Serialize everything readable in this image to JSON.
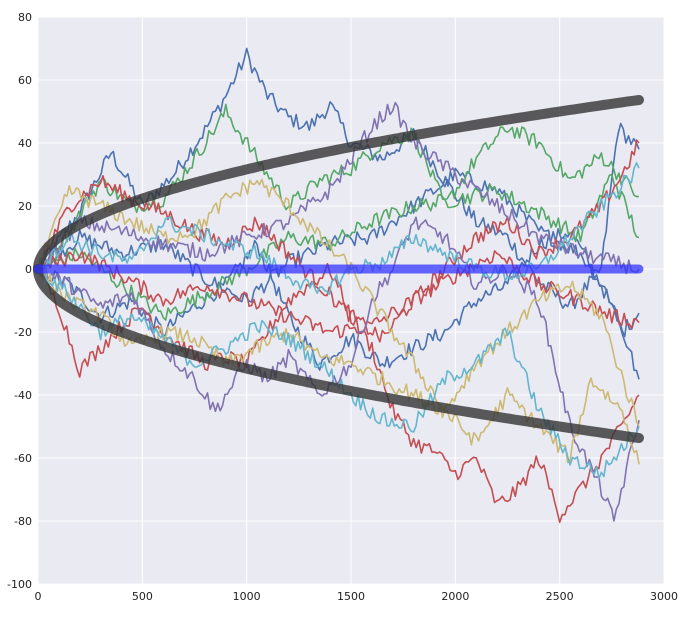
{
  "chart_data": {
    "type": "line",
    "title": "",
    "xlabel": "",
    "ylabel": "",
    "xlim": [
      0,
      3000
    ],
    "ylim": [
      -100,
      80
    ],
    "x_ticks": [
      0,
      500,
      1000,
      1500,
      2000,
      2500,
      3000
    ],
    "y_ticks": [
      -100,
      -80,
      -60,
      -40,
      -20,
      0,
      20,
      40,
      60,
      80
    ],
    "grid": true,
    "style": "seaborn-darkgrid",
    "n_steps": 2880,
    "colors": {
      "background": "#EAEAF2",
      "grid": "#FFFFFF",
      "envelope": "#333333",
      "mean_line": "#3333FF"
    },
    "reference_lines": [
      {
        "role": "upper-envelope",
        "formula": "sqrt(x)",
        "x": [
          0,
          2880
        ],
        "y_end": 53.7,
        "color": "#333333"
      },
      {
        "role": "lower-envelope",
        "formula": "-sqrt(x)",
        "x": [
          0,
          2880
        ],
        "y_end": -53.7,
        "color": "#333333"
      },
      {
        "role": "zero-mean",
        "x": [
          0,
          2880
        ],
        "y": [
          0,
          0
        ],
        "color": "#3333FF"
      }
    ],
    "series": [
      {
        "color": "#4C72B0",
        "x": [
          0,
          200,
          350,
          500,
          650,
          800,
          900,
          1000,
          1100,
          1200,
          1300,
          1400,
          1500,
          1650,
          1800,
          1950,
          2100,
          2250,
          2400,
          2550,
          2700,
          2780,
          2880
        ],
        "y": [
          0,
          18,
          37,
          20,
          30,
          44,
          55,
          68,
          55,
          48,
          45,
          52,
          40,
          35,
          43,
          28,
          15,
          10,
          -4,
          -12,
          0,
          45,
          38
        ]
      },
      {
        "color": "#4C72B0",
        "x": [
          0,
          150,
          300,
          450,
          600,
          750,
          900,
          1050,
          1200,
          1350,
          1500,
          1650,
          1800,
          1950,
          2100,
          2250,
          2400,
          2550,
          2700,
          2800,
          2880
        ],
        "y": [
          0,
          -5,
          -15,
          -10,
          -20,
          -12,
          -5,
          8,
          -15,
          -30,
          -22,
          -30,
          -25,
          -20,
          -10,
          -5,
          8,
          12,
          -5,
          -20,
          -14
        ]
      },
      {
        "color": "#4C72B0",
        "x": [
          0,
          200,
          400,
          600,
          800,
          1000,
          1200,
          1400,
          1600,
          1800,
          2000,
          2200,
          2400,
          2600,
          2750,
          2880
        ],
        "y": [
          0,
          10,
          5,
          8,
          -3,
          -10,
          2,
          8,
          10,
          20,
          30,
          25,
          12,
          5,
          -10,
          -35
        ]
      },
      {
        "color": "#55A868",
        "x": [
          0,
          150,
          300,
          450,
          600,
          750,
          900,
          1050,
          1200,
          1350,
          1500,
          1650,
          1800,
          1950,
          2100,
          2250,
          2400,
          2550,
          2700,
          2880
        ],
        "y": [
          0,
          12,
          28,
          20,
          22,
          35,
          50,
          35,
          20,
          28,
          32,
          40,
          43,
          20,
          35,
          45,
          40,
          28,
          36,
          23
        ]
      },
      {
        "color": "#55A868",
        "x": [
          0,
          200,
          400,
          600,
          800,
          1000,
          1200,
          1400,
          1600,
          1800,
          2000,
          2200,
          2400,
          2600,
          2750,
          2880
        ],
        "y": [
          0,
          5,
          -5,
          -15,
          -8,
          0,
          10,
          8,
          15,
          20,
          22,
          25,
          18,
          10,
          30,
          10
        ]
      },
      {
        "color": "#C44E52",
        "x": [
          0,
          100,
          200,
          300,
          400,
          500,
          600,
          700,
          800,
          900,
          1000,
          1100,
          1200,
          1300,
          1400,
          1500,
          1600,
          1700,
          1800,
          1900,
          2000,
          2100,
          2200,
          2300,
          2400,
          2500,
          2600,
          2700,
          2800,
          2880
        ],
        "y": [
          0,
          -12,
          -32,
          -25,
          -18,
          -12,
          -20,
          -25,
          -30,
          -28,
          -30,
          -20,
          -10,
          -5,
          0,
          -15,
          -25,
          -45,
          -55,
          -58,
          -65,
          -60,
          -75,
          -70,
          -60,
          -78,
          -70,
          -60,
          -50,
          -40
        ]
      },
      {
        "color": "#C44E52",
        "x": [
          0,
          150,
          300,
          450,
          600,
          750,
          900,
          1050,
          1200,
          1350,
          1500,
          1650,
          1800,
          1950,
          2100,
          2250,
          2400,
          2550,
          2700,
          2800,
          2880
        ],
        "y": [
          0,
          20,
          28,
          22,
          18,
          12,
          8,
          15,
          5,
          -5,
          -15,
          -22,
          -10,
          0,
          10,
          15,
          5,
          10,
          20,
          30,
          40
        ]
      },
      {
        "color": "#C44E52",
        "x": [
          0,
          200,
          400,
          600,
          800,
          1000,
          1200,
          1400,
          1600,
          1800,
          2000,
          2200,
          2400,
          2600,
          2750,
          2880
        ],
        "y": [
          0,
          5,
          -2,
          -10,
          -5,
          -10,
          -15,
          -20,
          -18,
          -10,
          -2,
          5,
          -5,
          -10,
          -15,
          -17
        ]
      },
      {
        "color": "#8172B2",
        "x": [
          0,
          150,
          300,
          450,
          600,
          750,
          850,
          1000,
          1100,
          1200,
          1350,
          1500,
          1600,
          1700,
          1800,
          1950,
          2100,
          2250,
          2400,
          2550,
          2700,
          2760,
          2880
        ],
        "y": [
          0,
          -5,
          -12,
          -8,
          -25,
          -35,
          -45,
          -30,
          -35,
          -28,
          -40,
          -30,
          -10,
          0,
          15,
          10,
          -5,
          0,
          -10,
          -50,
          -70,
          -80,
          -48
        ]
      },
      {
        "color": "#8172B2",
        "x": [
          0,
          200,
          400,
          600,
          800,
          1000,
          1200,
          1400,
          1600,
          1700,
          1800,
          2000,
          2200,
          2400,
          2600,
          2880
        ],
        "y": [
          0,
          15,
          12,
          8,
          5,
          10,
          15,
          25,
          45,
          52,
          40,
          30,
          20,
          10,
          5,
          0
        ]
      },
      {
        "color": "#CCB974",
        "x": [
          0,
          150,
          300,
          450,
          600,
          750,
          900,
          1050,
          1200,
          1350,
          1500,
          1650,
          1800,
          1950,
          2100,
          2250,
          2400,
          2550,
          2650,
          2800,
          2880
        ],
        "y": [
          0,
          25,
          20,
          15,
          10,
          12,
          22,
          28,
          20,
          10,
          0,
          -15,
          -30,
          -45,
          -55,
          -40,
          -50,
          -60,
          -35,
          -45,
          -62
        ]
      },
      {
        "color": "#CCB974",
        "x": [
          0,
          150,
          300,
          450,
          600,
          750,
          900,
          1050,
          1200,
          1350,
          1500,
          1650,
          1800,
          1950,
          2100,
          2250,
          2400,
          2550,
          2700,
          2880
        ],
        "y": [
          0,
          -10,
          -15,
          -25,
          -20,
          -22,
          -30,
          -25,
          -20,
          -28,
          -30,
          -35,
          -40,
          -45,
          -30,
          -20,
          -10,
          -5,
          -15,
          -50
        ]
      },
      {
        "color": "#64B5CD",
        "x": [
          0,
          150,
          300,
          450,
          600,
          750,
          900,
          1050,
          1200,
          1350,
          1500,
          1650,
          1800,
          1950,
          2100,
          2250,
          2400,
          2550,
          2700,
          2880
        ],
        "y": [
          0,
          -8,
          -20,
          -15,
          -22,
          -30,
          -25,
          -18,
          -22,
          -30,
          -40,
          -48,
          -50,
          -35,
          -30,
          -20,
          -45,
          -60,
          -65,
          -50
        ]
      },
      {
        "color": "#64B5CD",
        "x": [
          0,
          150,
          300,
          450,
          600,
          750,
          900,
          1050,
          1200,
          1350,
          1500,
          1650,
          1800,
          1950,
          2100,
          2250,
          2400,
          2550,
          2700,
          2880
        ],
        "y": [
          0,
          10,
          5,
          2,
          15,
          12,
          8,
          5,
          -2,
          -8,
          0,
          2,
          10,
          5,
          0,
          -2,
          0,
          10,
          20,
          32
        ]
      }
    ]
  }
}
